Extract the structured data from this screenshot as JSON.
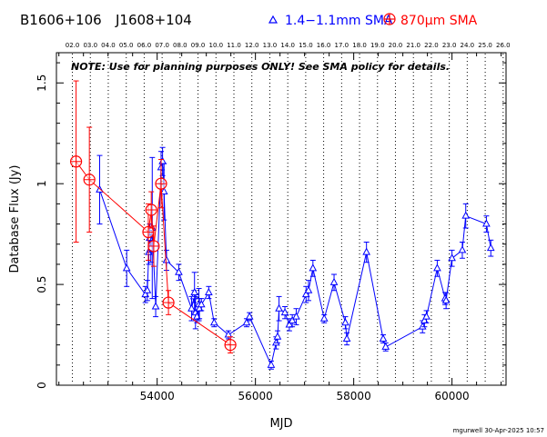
{
  "chart_data": {
    "type": "scatter",
    "source_names": [
      "B1606+106",
      "J1608+104"
    ],
    "legend": {
      "blue_label": "1.4−1.1mm SMA",
      "red_label": "870μm SMA",
      "blue_color": "#0000ff",
      "red_color": "#ff0000",
      "placement": "top-right"
    },
    "note": "NOTE: Use for planning purposes ONLY!  See SMA policy for details.",
    "xlabel": "MJD",
    "ylabel": "Database Flux (Jy)",
    "footer": "mgurwell 30-Apr-2025 10:57",
    "xlim": [
      51950,
      61100
    ],
    "ylim": [
      0,
      1.65
    ],
    "x_ticks": [
      54000,
      56000,
      58000,
      60000
    ],
    "y_ticks": [
      0,
      0.5,
      1,
      1.5
    ],
    "y_tick_labels": [
      "0",
      "0.5",
      "1",
      "1.5"
    ],
    "year_labels": [
      "02.0",
      "03.0",
      "04.0",
      "05.0",
      "06.0",
      "07.0",
      "08.0",
      "09.0",
      "10.0",
      "11.0",
      "12.0",
      "13.0",
      "14.0",
      "15.0",
      "16.0",
      "17.0",
      "18.0",
      "19.0",
      "20.0",
      "21.0",
      "22.0",
      "23.0",
      "24.0",
      "25.0",
      "26.0"
    ],
    "year_mjd": [
      52275,
      52640,
      53005,
      53371,
      53736,
      54101,
      54466,
      54832,
      55197,
      55562,
      55927,
      56293,
      56658,
      57023,
      57388,
      57754,
      58119,
      58484,
      58849,
      59215,
      59580,
      59945,
      60310,
      60676,
      61041
    ],
    "grid": "dotted vertical lines at year boundaries",
    "series": [
      {
        "name": "1.4−1.1mm SMA",
        "color": "#0000ff",
        "marker": "triangle",
        "points": [
          [
            52830,
            0.97,
            0.17
          ],
          [
            53380,
            0.58,
            0.09
          ],
          [
            53760,
            0.45,
            0.04
          ],
          [
            53800,
            0.47,
            0.05
          ],
          [
            53830,
            0.66,
            0.06
          ],
          [
            53850,
            0.73,
            0.07
          ],
          [
            53870,
            0.68,
            0.07
          ],
          [
            53900,
            0.78,
            0.35
          ],
          [
            53970,
            0.39,
            0.05
          ],
          [
            54080,
            1.08,
            0.08
          ],
          [
            54110,
            1.11,
            0.07
          ],
          [
            54140,
            0.96,
            0.14
          ],
          [
            54190,
            0.62,
            0.05
          ],
          [
            54440,
            0.56,
            0.04
          ],
          [
            54700,
            0.38,
            0.06
          ],
          [
            54750,
            0.44,
            0.03
          ],
          [
            54760,
            0.46,
            0.1
          ],
          [
            54780,
            0.36,
            0.08
          ],
          [
            54810,
            0.34,
            0.03
          ],
          [
            54850,
            0.4,
            0.08
          ],
          [
            54860,
            0.38,
            0.05
          ],
          [
            54900,
            0.4,
            0.03
          ],
          [
            55050,
            0.46,
            0.03
          ],
          [
            55160,
            0.31,
            0.02
          ],
          [
            55450,
            0.25,
            0.02
          ],
          [
            55820,
            0.31,
            0.02
          ],
          [
            55880,
            0.34,
            0.02
          ],
          [
            56320,
            0.1,
            0.02
          ],
          [
            56420,
            0.21,
            0.03
          ],
          [
            56450,
            0.24,
            0.03
          ],
          [
            56480,
            0.38,
            0.06
          ],
          [
            56600,
            0.36,
            0.03
          ],
          [
            56690,
            0.3,
            0.03
          ],
          [
            56750,
            0.32,
            0.03
          ],
          [
            56830,
            0.34,
            0.04
          ],
          [
            57030,
            0.45,
            0.04
          ],
          [
            57080,
            0.47,
            0.05
          ],
          [
            57170,
            0.58,
            0.04
          ],
          [
            57400,
            0.33,
            0.02
          ],
          [
            57600,
            0.51,
            0.04
          ],
          [
            57830,
            0.31,
            0.03
          ],
          [
            57860,
            0.23,
            0.03
          ],
          [
            58260,
            0.66,
            0.05
          ],
          [
            58600,
            0.23,
            0.02
          ],
          [
            58650,
            0.19,
            0.02
          ],
          [
            59400,
            0.29,
            0.03
          ],
          [
            59440,
            0.32,
            0.03
          ],
          [
            59480,
            0.34,
            0.03
          ],
          [
            59700,
            0.58,
            0.04
          ],
          [
            59860,
            0.43,
            0.03
          ],
          [
            59880,
            0.42,
            0.04
          ],
          [
            60000,
            0.63,
            0.04
          ],
          [
            60210,
            0.67,
            0.04
          ],
          [
            60280,
            0.84,
            0.06
          ],
          [
            60700,
            0.8,
            0.04
          ],
          [
            60790,
            0.68,
            0.04
          ]
        ]
      },
      {
        "name": "870μm SMA",
        "color": "#ff0000",
        "marker": "circle-plus",
        "points": [
          [
            52350,
            1.11,
            0.4
          ],
          [
            52620,
            1.02,
            0.26
          ],
          [
            53820,
            0.76,
            0.14
          ],
          [
            53880,
            0.87,
            0.09
          ],
          [
            53930,
            0.69,
            0.1
          ],
          [
            54080,
            1.0,
            0.12
          ],
          [
            54230,
            0.41,
            0.06
          ],
          [
            55490,
            0.2,
            0.04
          ]
        ]
      }
    ]
  }
}
